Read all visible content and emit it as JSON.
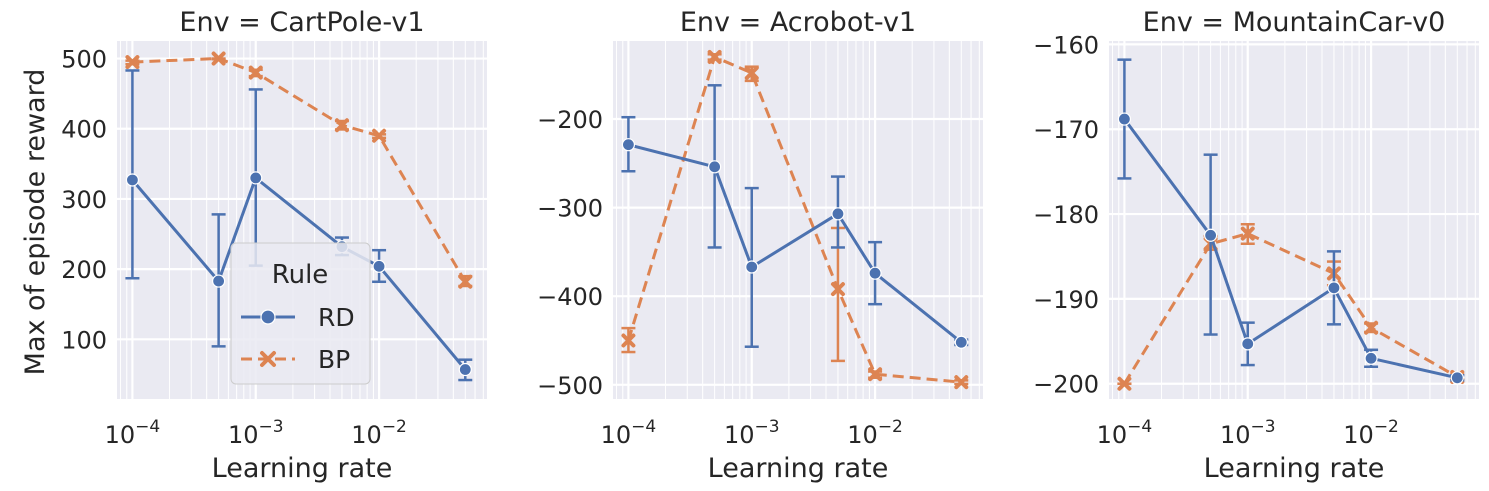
{
  "chart_data": {
    "type": "line",
    "ylabel": "Max of episode reward",
    "xlabel": "Learning rate",
    "x_scale": "log",
    "x": [
      0.0001,
      0.0005,
      0.001,
      0.005,
      0.01,
      0.05
    ],
    "legend": {
      "title": "Rule",
      "placement": "inside-lower-center (first panel)",
      "entries": [
        {
          "name": "RD",
          "color": "#4c72b0",
          "marker": "circle",
          "linestyle": "solid"
        },
        {
          "name": "BP",
          "color": "#dd8452",
          "marker": "x",
          "linestyle": "dashed"
        }
      ]
    },
    "grid": true,
    "panels": [
      {
        "title": "Env = CartPole-v1",
        "x_ticks": [
          {
            "base": "10",
            "exp": "−4",
            "value": 0.0001
          },
          {
            "base": "10",
            "exp": "−3",
            "value": 0.001
          },
          {
            "base": "10",
            "exp": "−2",
            "value": 0.01
          }
        ],
        "x_range": [
          7.5e-05,
          0.075
        ],
        "y_range": [
          15,
          525
        ],
        "y_ticks": [
          {
            "value": 100,
            "label": "100"
          },
          {
            "value": 200,
            "label": "200"
          },
          {
            "value": 300,
            "label": "300"
          },
          {
            "value": 400,
            "label": "400"
          },
          {
            "value": 500,
            "label": "500"
          }
        ],
        "series": [
          {
            "name": "RD",
            "values": [
              327,
              183,
              330,
              232,
              204,
              57
            ],
            "err_low": [
              187,
              90,
              205,
              220,
              182,
              42
            ],
            "err_high": [
              483,
              278,
              456,
              245,
              227,
              71
            ]
          },
          {
            "name": "BP",
            "values": [
              495,
              500,
              480,
              405,
              390,
              182
            ],
            "err_low": [
              492,
              499,
              475,
              399,
              387,
              176
            ],
            "err_high": [
              497,
              500,
              484,
              411,
              392,
              190
            ]
          }
        ]
      },
      {
        "title": "Env = Acrobot-v1",
        "x_ticks": [
          {
            "base": "10",
            "exp": "−4",
            "value": 0.0001
          },
          {
            "base": "10",
            "exp": "−3",
            "value": 0.001
          },
          {
            "base": "10",
            "exp": "−2",
            "value": 0.01
          }
        ],
        "x_range": [
          7.5e-05,
          0.075
        ],
        "y_range": [
          -516,
          -112
        ],
        "y_ticks": [
          {
            "value": -500,
            "label": "−500"
          },
          {
            "value": -400,
            "label": "−400"
          },
          {
            "value": -300,
            "label": "−300"
          },
          {
            "value": -200,
            "label": "−200"
          }
        ],
        "series": [
          {
            "name": "RD",
            "values": [
              -229,
              -254,
              -367,
              -307,
              -374,
              -452
            ],
            "err_low": [
              -259,
              -345,
              -457,
              -345,
              -409,
              -455
            ],
            "err_high": [
              -198,
              -162,
              -278,
              -265,
              -339,
              -449
            ]
          },
          {
            "name": "BP",
            "values": [
              -450,
              -130,
              -148,
              -392,
              -488,
              -497
            ],
            "err_low": [
              -463,
              -133,
              -157,
              -473,
              -492,
              -499
            ],
            "err_high": [
              -436,
              -127,
              -141,
              -323,
              -485,
              -495
            ]
          }
        ]
      },
      {
        "title": "Env = MountainCar-v0",
        "x_ticks": [
          {
            "base": "10",
            "exp": "−4",
            "value": 0.0001
          },
          {
            "base": "10",
            "exp": "−3",
            "value": 0.001
          },
          {
            "base": "10",
            "exp": "−2",
            "value": 0.01
          }
        ],
        "x_range": [
          7.5e-05,
          0.075
        ],
        "y_range": [
          -201.8,
          -159.6
        ],
        "y_ticks": [
          {
            "value": -200,
            "label": "−200"
          },
          {
            "value": -190,
            "label": "−190"
          },
          {
            "value": -180,
            "label": "−180"
          },
          {
            "value": -170,
            "label": "−170"
          },
          {
            "value": -160,
            "label": "−160"
          }
        ],
        "series": [
          {
            "name": "RD",
            "values": [
              -168.8,
              -182.5,
              -195.3,
              -188.7,
              -197.0,
              -199.3
            ],
            "err_low": [
              -175.8,
              -194.2,
              -197.8,
              -193.0,
              -198.0,
              -199.6
            ],
            "err_high": [
              -161.8,
              -173.0,
              -192.8,
              -184.4,
              -196.0,
              -199.0
            ]
          },
          {
            "name": "BP",
            "values": [
              -200.0,
              -183.5,
              -182.3,
              -187.0,
              -193.4,
              -199.2
            ],
            "err_low": [
              -200.0,
              -184.2,
              -183.5,
              -188.4,
              -193.9,
              -199.5
            ],
            "err_high": [
              -200.0,
              -182.6,
              -181.2,
              -185.6,
              -192.9,
              -198.9
            ]
          }
        ]
      }
    ]
  }
}
